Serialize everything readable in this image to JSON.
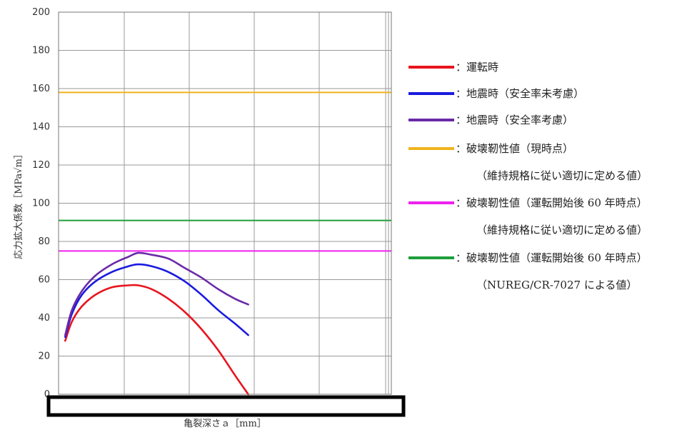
{
  "chart_data": {
    "type": "line",
    "ylabel": "応力拡大係数［MPa√m］",
    "xlabel": "亀裂深さａ［mm］",
    "ylim": [
      0,
      200
    ],
    "yticks": [
      0,
      20,
      40,
      60,
      80,
      100,
      120,
      140,
      160,
      180,
      200
    ],
    "x_domain": [
      0,
      1
    ],
    "grid": true,
    "legend_position": "right",
    "series": [
      {
        "name": "：運転時",
        "color": "#e8141e",
        "type": "curve",
        "x": [
          0.02,
          0.04,
          0.07,
          0.11,
          0.16,
          0.21,
          0.24,
          0.28,
          0.33,
          0.38,
          0.43,
          0.48,
          0.53,
          0.57
        ],
        "values": [
          28,
          38,
          46,
          52,
          56,
          57,
          57,
          55,
          50,
          43,
          34,
          23,
          10,
          0
        ]
      },
      {
        "name": "：地震時（安全率未考慮）",
        "color": "#1a1ae0",
        "type": "curve",
        "x": [
          0.02,
          0.04,
          0.07,
          0.11,
          0.16,
          0.21,
          0.24,
          0.28,
          0.33,
          0.38,
          0.43,
          0.48,
          0.53,
          0.57
        ],
        "values": [
          30,
          42,
          52,
          59,
          64,
          67,
          68,
          67,
          64,
          59,
          52,
          44,
          37,
          31
        ]
      },
      {
        "name": "：地震時（安全率考慮）",
        "color": "#6a2aa8",
        "type": "curve",
        "x": [
          0.02,
          0.04,
          0.07,
          0.11,
          0.16,
          0.21,
          0.24,
          0.28,
          0.33,
          0.38,
          0.43,
          0.48,
          0.53,
          0.57
        ],
        "values": [
          31,
          44,
          54,
          62,
          68,
          72,
          74,
          73,
          71,
          66,
          61,
          55,
          50,
          47
        ]
      },
      {
        "name": "：破壊靭性値（現時点）",
        "sublabel": "（維持規格に従い適切に定める値）",
        "color": "#f0b31c",
        "type": "hline",
        "value": 158
      },
      {
        "name": "：破壊靭性値（運転開始後 60 年時点）",
        "sublabel": "（維持規格に従い適切に定める値）",
        "color": "#ee22ee",
        "type": "hline",
        "value": 75
      },
      {
        "name": "：破壊靭性値（運転開始後 60 年時点）",
        "sublabel": "（NUREG/CR-7027 による値）",
        "color": "#1e9e3c",
        "type": "hline",
        "value": 91
      }
    ]
  }
}
